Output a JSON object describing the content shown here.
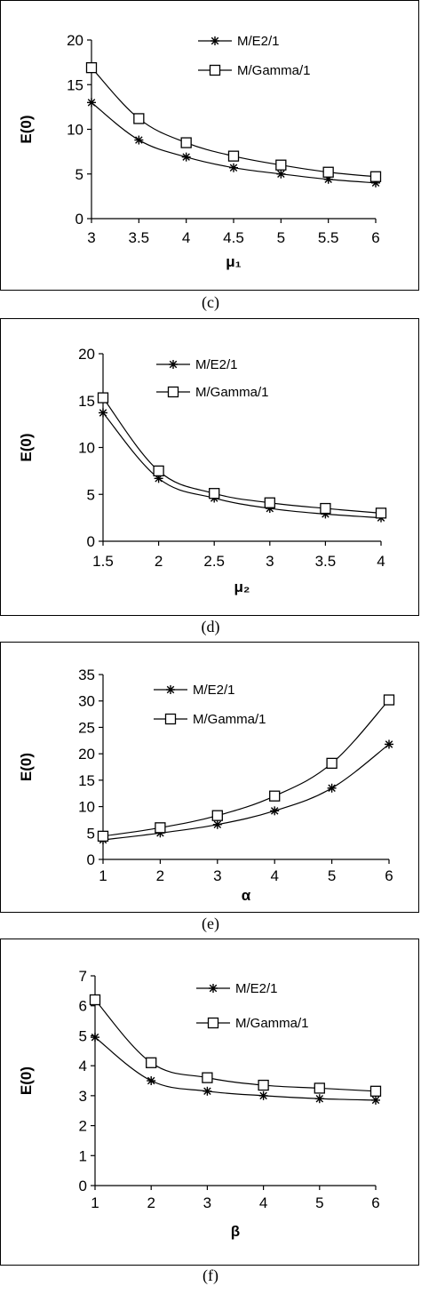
{
  "figures": [
    {
      "caption": "(c)"
    },
    {
      "caption": "(d)"
    },
    {
      "caption": "(e)"
    },
    {
      "caption": "(f)"
    }
  ],
  "chart_data": [
    {
      "type": "line",
      "xlabel": "μ₁",
      "ylabel": "E(0)",
      "x": [
        3,
        3.5,
        4,
        4.5,
        5,
        5.5,
        6
      ],
      "x_tick_labels": [
        "3",
        "3.5",
        "4",
        "4.5",
        "5",
        "5.5",
        "6"
      ],
      "xlim": [
        3,
        6
      ],
      "ylim": [
        0,
        20
      ],
      "y_ticks": [
        0,
        5,
        10,
        15,
        20
      ],
      "grid": false,
      "legend_position": "top-right",
      "series": [
        {
          "name": "M/E2/1",
          "marker": "asterisk",
          "values": [
            13,
            8.8,
            6.9,
            5.7,
            5.0,
            4.4,
            4.0
          ]
        },
        {
          "name": "M/Gamma/1",
          "marker": "square",
          "values": [
            16.9,
            11.2,
            8.5,
            7.0,
            6.0,
            5.2,
            4.7
          ]
        }
      ]
    },
    {
      "type": "line",
      "xlabel": "μ₂",
      "ylabel": "E(0)",
      "x": [
        1.5,
        2,
        2.5,
        3,
        3.5,
        4
      ],
      "x_tick_labels": [
        "1.5",
        "2",
        "2.5",
        "3",
        "3.5",
        "4"
      ],
      "xlim": [
        1.5,
        4
      ],
      "ylim": [
        0,
        20
      ],
      "y_ticks": [
        0,
        5,
        10,
        15,
        20
      ],
      "grid": false,
      "legend_position": "top-right",
      "series": [
        {
          "name": "M/E2/1",
          "marker": "asterisk",
          "values": [
            13.7,
            6.7,
            4.6,
            3.5,
            2.9,
            2.5
          ]
        },
        {
          "name": "M/Gamma/1",
          "marker": "square",
          "values": [
            15.3,
            7.5,
            5.1,
            4.1,
            3.5,
            3.0
          ]
        }
      ]
    },
    {
      "type": "line",
      "xlabel": "α",
      "ylabel": "E(0)",
      "x": [
        1,
        2,
        3,
        4,
        5,
        6
      ],
      "x_tick_labels": [
        "1",
        "2",
        "3",
        "4",
        "5",
        "6"
      ],
      "xlim": [
        1,
        6
      ],
      "ylim": [
        0,
        35
      ],
      "y_ticks": [
        0,
        5,
        10,
        15,
        20,
        25,
        30,
        35
      ],
      "grid": false,
      "legend_position": "top-left",
      "series": [
        {
          "name": "M/E2/1",
          "marker": "asterisk",
          "values": [
            3.7,
            5.0,
            6.6,
            9.2,
            13.5,
            21.8
          ]
        },
        {
          "name": "M/Gamma/1",
          "marker": "square",
          "values": [
            4.4,
            6.0,
            8.3,
            12.0,
            18.2,
            30.2
          ]
        }
      ]
    },
    {
      "type": "line",
      "xlabel": "β",
      "ylabel": "E(0)",
      "x": [
        1,
        2,
        3,
        4,
        5,
        6
      ],
      "x_tick_labels": [
        "1",
        "2",
        "3",
        "4",
        "5",
        "6"
      ],
      "xlim": [
        1,
        6
      ],
      "ylim": [
        0,
        7
      ],
      "y_ticks": [
        0,
        1,
        2,
        3,
        4,
        5,
        6,
        7
      ],
      "grid": false,
      "legend_position": "top-right",
      "series": [
        {
          "name": "M/E2/1",
          "marker": "asterisk",
          "values": [
            4.95,
            3.5,
            3.15,
            3.0,
            2.9,
            2.85
          ]
        },
        {
          "name": "M/Gamma/1",
          "marker": "square",
          "values": [
            6.2,
            4.1,
            3.6,
            3.35,
            3.25,
            3.15
          ]
        }
      ]
    }
  ]
}
